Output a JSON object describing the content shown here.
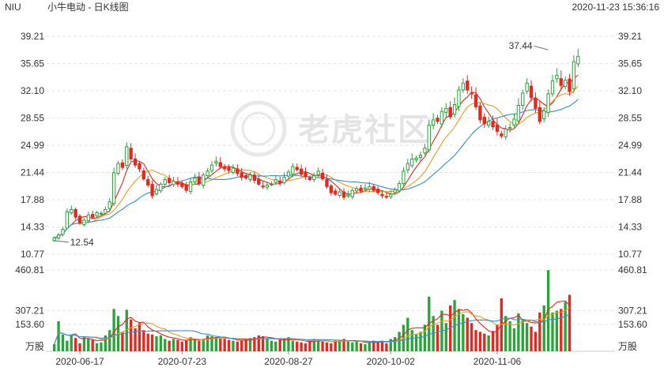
{
  "header": {
    "symbol": "NIU",
    "title": "小牛电动 - 日K线图",
    "datetime": "2020-11-23 15:36:16"
  },
  "watermark": "老虎社区",
  "colors": {
    "up": "#2aa43a",
    "down": "#e5281f",
    "ma5": "#e5281f",
    "ma10": "#f29a1f",
    "ma20": "#2f8fd6",
    "vol_ma1": "#e5281f",
    "vol_ma2": "#f29a1f",
    "vol_ma3": "#2f8fd6",
    "grid": "#e6e6e6",
    "axis_text": "#333333"
  },
  "chart_data": {
    "type": "candlestick",
    "price_axis": {
      "ticks": [
        "39.21",
        "35.65",
        "32.10",
        "28.55",
        "24.99",
        "21.44",
        "17.88",
        "14.33",
        "10.77"
      ],
      "ylim": [
        10.77,
        39.21
      ]
    },
    "volume_axis": {
      "ticks": [
        "460.81",
        "307.21",
        "153.60"
      ],
      "unit_label": "万股",
      "ylim": [
        0,
        460.81
      ]
    },
    "x_tick_labels": [
      {
        "label": "2020-06-17",
        "index": 6
      },
      {
        "label": "2020-07-23",
        "index": 30
      },
      {
        "label": "2020-08-27",
        "index": 55
      },
      {
        "label": "2020-10-02",
        "index": 79
      },
      {
        "label": "2020-11-06",
        "index": 104
      }
    ],
    "annotations": [
      {
        "label": "37.44",
        "index": 116,
        "value": 37.44
      },
      {
        "label": "12.54",
        "index": 0,
        "value": 12.54
      }
    ],
    "volume_ma_lines": 3,
    "price_ma_lines": [
      "MA5",
      "MA10",
      "MA20"
    ],
    "closes": [
      12.9,
      13.3,
      14.0,
      16.3,
      16.6,
      15.6,
      14.8,
      15.2,
      15.9,
      15.6,
      16.2,
      16.1,
      16.6,
      17.6,
      21.4,
      22.6,
      22.1,
      24.8,
      23.2,
      22.4,
      21.9,
      20.6,
      19.8,
      18.4,
      19.2,
      19.9,
      20.5,
      20.1,
      20.3,
      19.9,
      19.6,
      19.1,
      20.2,
      20.7,
      20.0,
      21.1,
      21.6,
      22.4,
      22.9,
      22.2,
      21.9,
      21.7,
      22.0,
      21.3,
      20.8,
      20.7,
      21.1,
      20.4,
      19.9,
      19.6,
      19.8,
      19.9,
      20.5,
      20.1,
      20.8,
      21.5,
      22.2,
      21.8,
      21.2,
      20.9,
      20.5,
      21.0,
      21.6,
      20.6,
      19.6,
      18.8,
      18.6,
      18.9,
      18.2,
      18.5,
      19.1,
      19.3,
      19.0,
      19.4,
      19.6,
      19.1,
      18.8,
      18.4,
      18.2,
      18.6,
      19.2,
      20.0,
      21.6,
      22.6,
      23.2,
      23.3,
      23.7,
      24.6,
      27.6,
      28.3,
      28.1,
      29.4,
      29.8,
      28.7,
      30.3,
      32.2,
      33.1,
      32.2,
      31.7,
      30.0,
      28.3,
      27.8,
      28.1,
      27.4,
      26.8,
      26.2,
      27.1,
      27.3,
      28.4,
      30.2,
      31.8,
      33.1,
      31.2,
      29.8,
      28.1,
      29.5,
      31.7,
      33.4,
      34.1,
      32.8,
      33.5,
      32.0,
      35.9,
      36.6
    ],
    "volumes": [
      40,
      170,
      95,
      60,
      95,
      75,
      45,
      80,
      70,
      65,
      45,
      50,
      90,
      120,
      240,
      200,
      110,
      235,
      180,
      130,
      160,
      120,
      100,
      95,
      85,
      90,
      70,
      60,
      70,
      65,
      55,
      60,
      80,
      70,
      60,
      70,
      90,
      85,
      80,
      75,
      70,
      65,
      60,
      55,
      60,
      70,
      75,
      80,
      90,
      85,
      70,
      60,
      55,
      65,
      70,
      80,
      60,
      55,
      50,
      45,
      65,
      70,
      60,
      55,
      50,
      45,
      60,
      65,
      70,
      55,
      50,
      60,
      45,
      40,
      50,
      60,
      55,
      60,
      45,
      70,
      80,
      110,
      150,
      190,
      120,
      95,
      110,
      150,
      310,
      200,
      150,
      230,
      160,
      260,
      290,
      240,
      210,
      190,
      160,
      120,
      110,
      100,
      90,
      115,
      150,
      300,
      200,
      170,
      130,
      215,
      175,
      160,
      140,
      110,
      220,
      260,
      460,
      220,
      230,
      240,
      280,
      320
    ]
  }
}
